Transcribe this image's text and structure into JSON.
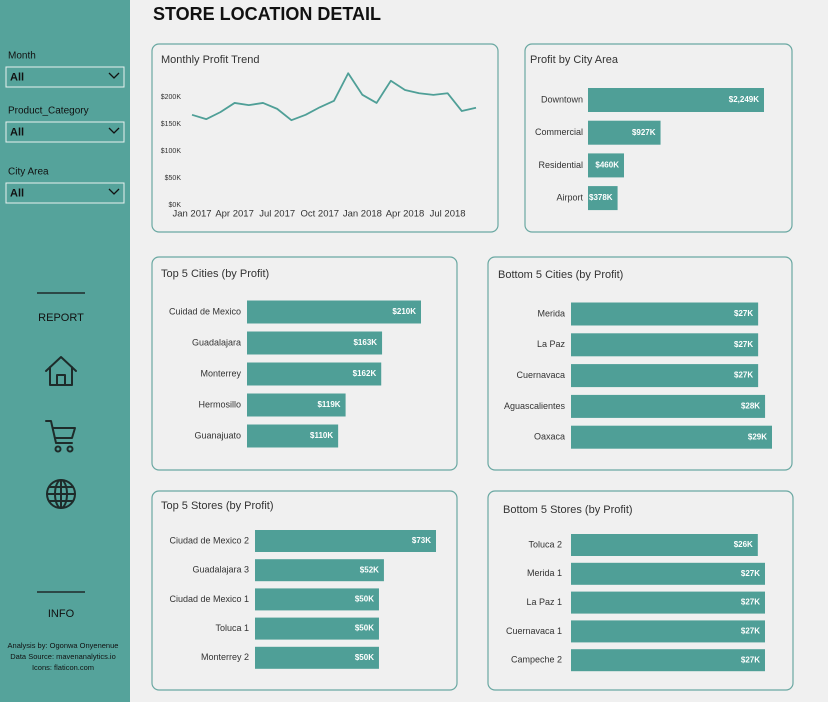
{
  "title": "STORE LOCATION DETAIL",
  "sidebar": {
    "filters": [
      {
        "label": "Month",
        "value": "All"
      },
      {
        "label": "Product_Category",
        "value": "All"
      },
      {
        "label": "City Area",
        "value": "All"
      }
    ],
    "report": "REPORT",
    "info": "INFO",
    "credits": [
      "Analysis by: Ogonwa Onyenenue",
      "Data Source: mavenanalytics.io",
      "Icons: flaticon.com"
    ]
  },
  "chart_data": [
    {
      "type": "line",
      "title": "Monthly Profit Trend",
      "color": "#4f9f97",
      "x": [
        "2017-01",
        "2017-02",
        "2017-03",
        "2017-04",
        "2017-05",
        "2017-06",
        "2017-07",
        "2017-08",
        "2017-09",
        "2017-10",
        "2017-11",
        "2017-12",
        "2018-01",
        "2018-02",
        "2018-03",
        "2018-04",
        "2018-05",
        "2018-06",
        "2018-07",
        "2018-08",
        "2018-09"
      ],
      "values": [
        167,
        159,
        172,
        189,
        185,
        189,
        178,
        157,
        167,
        181,
        193,
        244,
        204,
        189,
        230,
        213,
        207,
        204,
        207,
        174,
        180
      ],
      "xlim": [
        "2017-01",
        "2018-09"
      ],
      "xticks": [
        {
          "value": "2017-01",
          "label": "Jan 2017"
        },
        {
          "value": "2017-04",
          "label": "Apr 2017"
        },
        {
          "value": "2017-07",
          "label": "Jul 2017"
        },
        {
          "value": "2017-10",
          "label": "Oct 2017"
        },
        {
          "value": "2018-01",
          "label": "Jan 2018"
        },
        {
          "value": "2018-04",
          "label": "Apr 2018"
        },
        {
          "value": "2018-07",
          "label": "Jul 2018"
        }
      ],
      "ylim": [
        0,
        250
      ],
      "yticks": [
        {
          "value": 0,
          "label": "$0K"
        },
        {
          "value": 50,
          "label": "$50K"
        },
        {
          "value": 100,
          "label": "$100K"
        },
        {
          "value": 150,
          "label": "$150K"
        },
        {
          "value": 200,
          "label": "$200K"
        }
      ]
    },
    {
      "type": "barh",
      "title": "Profit by City Area",
      "color": "#4f9f97",
      "categories": [
        "Downtown",
        "Commercial",
        "Residential",
        "Airport"
      ],
      "values": [
        2249,
        927,
        460,
        378
      ],
      "value_labels": [
        "$2,249K",
        "$927K",
        "$460K",
        "$378K"
      ]
    },
    {
      "type": "barh",
      "title": "Top 5 Cities (by Profit)",
      "color": "#4f9f97",
      "categories": [
        "Cuidad de Mexico",
        "Guadalajara",
        "Monterrey",
        "Hermosillo",
        "Guanajuato"
      ],
      "values": [
        210,
        163,
        162,
        119,
        110
      ],
      "value_labels": [
        "$210K",
        "$163K",
        "$162K",
        "$119K",
        "$110K"
      ]
    },
    {
      "type": "barh",
      "title": "Bottom 5 Cities (by Profit)",
      "color": "#4f9f97",
      "categories": [
        "Merida",
        "La Paz",
        "Cuernavaca",
        "Aguascalientes",
        "Oaxaca"
      ],
      "values": [
        27,
        27,
        27,
        28,
        29
      ],
      "value_labels": [
        "$27K",
        "$27K",
        "$27K",
        "$28K",
        "$29K"
      ]
    },
    {
      "type": "barh",
      "title": "Top 5 Stores (by Profit)",
      "color": "#4f9f97",
      "categories": [
        "Ciudad de Mexico 2",
        "Guadalajara 3",
        "Ciudad de Mexico 1",
        "Toluca 1",
        "Monterrey 2"
      ],
      "values": [
        73,
        52,
        50,
        50,
        50
      ],
      "value_labels": [
        "$73K",
        "$52K",
        "$50K",
        "$50K",
        "$50K"
      ]
    },
    {
      "type": "barh",
      "title": "Bottom 5 Stores (by Profit)",
      "color": "#4f9f97",
      "categories": [
        "Toluca 2",
        "Merida 1",
        "La Paz 1",
        "Cuernavaca 1",
        "Campeche 2"
      ],
      "values": [
        26,
        27,
        27,
        27,
        27
      ],
      "value_labels": [
        "$26K",
        "$27K",
        "$27K",
        "$27K",
        "$27K"
      ]
    }
  ]
}
